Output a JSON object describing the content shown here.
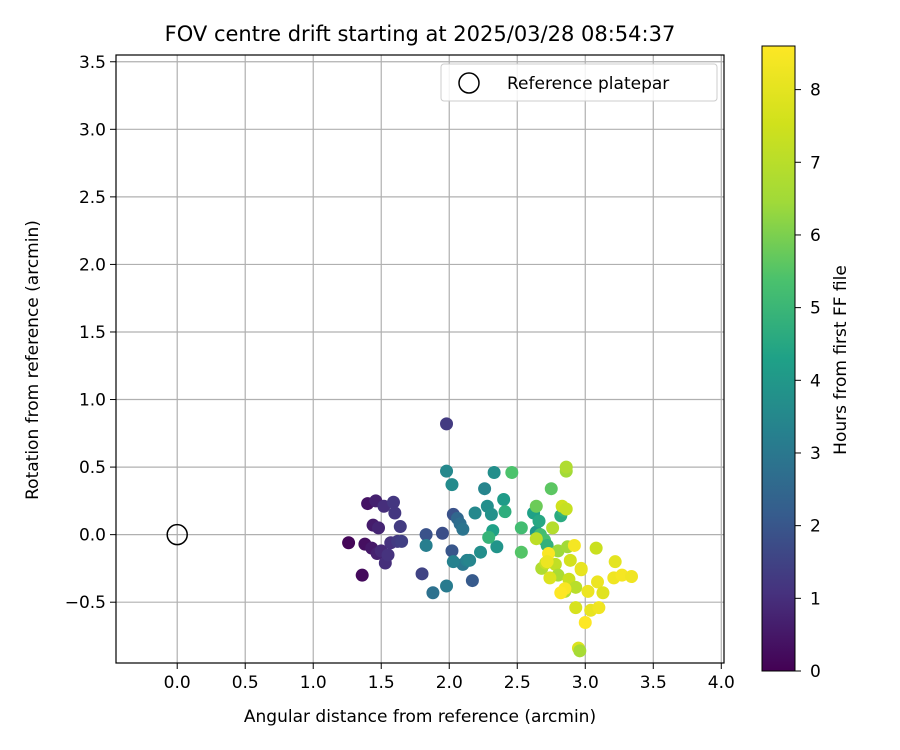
{
  "chart_data": {
    "type": "scatter",
    "title": "FOV centre drift starting at 2025/03/28 08:54:37",
    "xlabel": "Angular distance from reference (arcmin)",
    "ylabel": "Rotation from reference (arcmin)",
    "xlim": [
      -0.45,
      4.02
    ],
    "ylim": [
      -0.95,
      3.55
    ],
    "xticks": [
      "0.0",
      "0.5",
      "1.0",
      "1.5",
      "2.0",
      "2.5",
      "3.0",
      "3.5",
      "4.0"
    ],
    "yticks": [
      "−0.5",
      "0.0",
      "0.5",
      "1.0",
      "1.5",
      "2.0",
      "2.5",
      "3.0",
      "3.5"
    ],
    "grid": true,
    "legend": {
      "placement": "top-right",
      "entries": [
        "Reference platepar"
      ]
    },
    "reference_point": {
      "x": 0.0,
      "y": 0.0
    },
    "colorbar": {
      "label": "Hours from first FF file",
      "range": [
        0,
        8.6
      ],
      "ticks": [
        "0",
        "1",
        "2",
        "3",
        "4",
        "5",
        "6",
        "7",
        "8"
      ],
      "colormap": "viridis"
    },
    "points": [
      {
        "x": 1.26,
        "y": -0.06,
        "h": 0.1
      },
      {
        "x": 1.36,
        "y": -0.3,
        "h": 0.2
      },
      {
        "x": 1.38,
        "y": -0.07,
        "h": 0.3
      },
      {
        "x": 1.4,
        "y": 0.23,
        "h": 0.4
      },
      {
        "x": 1.43,
        "y": -0.1,
        "h": 0.5
      },
      {
        "x": 1.44,
        "y": 0.07,
        "h": 0.6
      },
      {
        "x": 1.46,
        "y": 0.25,
        "h": 0.7
      },
      {
        "x": 1.47,
        "y": -0.14,
        "h": 0.7
      },
      {
        "x": 1.48,
        "y": 0.05,
        "h": 0.8
      },
      {
        "x": 1.5,
        "y": -0.12,
        "h": 0.9
      },
      {
        "x": 1.52,
        "y": 0.21,
        "h": 1.0
      },
      {
        "x": 1.53,
        "y": -0.21,
        "h": 1.0
      },
      {
        "x": 1.55,
        "y": -0.15,
        "h": 1.1
      },
      {
        "x": 1.57,
        "y": -0.06,
        "h": 1.1
      },
      {
        "x": 1.59,
        "y": 0.24,
        "h": 1.2
      },
      {
        "x": 1.6,
        "y": 0.16,
        "h": 1.2
      },
      {
        "x": 1.62,
        "y": -0.05,
        "h": 1.3
      },
      {
        "x": 1.64,
        "y": 0.06,
        "h": 1.3
      },
      {
        "x": 1.65,
        "y": -0.05,
        "h": 1.4
      },
      {
        "x": 1.98,
        "y": 0.82,
        "h": 1.3
      },
      {
        "x": 1.8,
        "y": -0.29,
        "h": 1.5
      },
      {
        "x": 1.83,
        "y": 0.0,
        "h": 1.9
      },
      {
        "x": 1.95,
        "y": 0.01,
        "h": 1.8
      },
      {
        "x": 2.03,
        "y": 0.15,
        "h": 1.9
      },
      {
        "x": 2.02,
        "y": -0.12,
        "h": 2.0
      },
      {
        "x": 2.17,
        "y": -0.34,
        "h": 2.1
      },
      {
        "x": 1.88,
        "y": -0.43,
        "h": 2.8
      },
      {
        "x": 1.98,
        "y": -0.38,
        "h": 3.1
      },
      {
        "x": 2.06,
        "y": 0.12,
        "h": 2.5
      },
      {
        "x": 2.08,
        "y": 0.08,
        "h": 2.7
      },
      {
        "x": 2.1,
        "y": 0.04,
        "h": 2.9
      },
      {
        "x": 2.1,
        "y": -0.22,
        "h": 3.0
      },
      {
        "x": 1.83,
        "y": -0.08,
        "h": 3.2
      },
      {
        "x": 2.03,
        "y": -0.2,
        "h": 3.3
      },
      {
        "x": 2.13,
        "y": -0.19,
        "h": 3.3
      },
      {
        "x": 2.15,
        "y": -0.19,
        "h": 3.4
      },
      {
        "x": 1.98,
        "y": 0.47,
        "h": 3.5
      },
      {
        "x": 2.02,
        "y": 0.37,
        "h": 3.6
      },
      {
        "x": 2.19,
        "y": 0.16,
        "h": 3.5
      },
      {
        "x": 2.23,
        "y": -0.13,
        "h": 3.7
      },
      {
        "x": 2.26,
        "y": 0.34,
        "h": 3.4
      },
      {
        "x": 2.28,
        "y": 0.21,
        "h": 3.7
      },
      {
        "x": 2.31,
        "y": 0.15,
        "h": 3.8
      },
      {
        "x": 2.33,
        "y": 0.46,
        "h": 3.7
      },
      {
        "x": 2.35,
        "y": -0.09,
        "h": 3.9
      },
      {
        "x": 2.32,
        "y": 0.03,
        "h": 4.3
      },
      {
        "x": 2.4,
        "y": 0.26,
        "h": 4.1
      },
      {
        "x": 2.41,
        "y": 0.17,
        "h": 4.7
      },
      {
        "x": 2.29,
        "y": -0.02,
        "h": 4.9
      },
      {
        "x": 2.46,
        "y": 0.46,
        "h": 5.4
      },
      {
        "x": 2.53,
        "y": 0.05,
        "h": 5.2
      },
      {
        "x": 2.53,
        "y": -0.13,
        "h": 5.5
      },
      {
        "x": 2.62,
        "y": 0.16,
        "h": 4.3
      },
      {
        "x": 2.64,
        "y": 0.02,
        "h": 4.0
      },
      {
        "x": 2.66,
        "y": 0.1,
        "h": 4.5
      },
      {
        "x": 2.67,
        "y": 0.0,
        "h": 5.2
      },
      {
        "x": 2.7,
        "y": -0.04,
        "h": 5.3
      },
      {
        "x": 2.72,
        "y": -0.08,
        "h": 4.8
      },
      {
        "x": 2.75,
        "y": 0.34,
        "h": 5.6
      },
      {
        "x": 2.64,
        "y": 0.21,
        "h": 5.8
      },
      {
        "x": 2.82,
        "y": 0.14,
        "h": 4.6
      },
      {
        "x": 2.84,
        "y": 0.18,
        "h": 4.9
      },
      {
        "x": 2.86,
        "y": 0.47,
        "h": 6.5
      },
      {
        "x": 2.86,
        "y": 0.5,
        "h": 6.8
      },
      {
        "x": 2.68,
        "y": -0.25,
        "h": 6.8
      },
      {
        "x": 2.76,
        "y": 0.05,
        "h": 6.9
      },
      {
        "x": 2.8,
        "y": -0.12,
        "h": 6.4
      },
      {
        "x": 2.64,
        "y": -0.03,
        "h": 7.1
      },
      {
        "x": 2.71,
        "y": -0.21,
        "h": 7.3
      },
      {
        "x": 2.78,
        "y": -0.22,
        "h": 7.2
      },
      {
        "x": 2.83,
        "y": 0.21,
        "h": 7.5
      },
      {
        "x": 2.86,
        "y": 0.19,
        "h": 7.3
      },
      {
        "x": 2.87,
        "y": -0.09,
        "h": 6.5
      },
      {
        "x": 2.8,
        "y": -0.3,
        "h": 6.7
      },
      {
        "x": 2.85,
        "y": -0.42,
        "h": 6.9
      },
      {
        "x": 2.88,
        "y": -0.33,
        "h": 7.4
      },
      {
        "x": 2.89,
        "y": -0.19,
        "h": 7.6
      },
      {
        "x": 2.93,
        "y": -0.39,
        "h": 7.0
      },
      {
        "x": 2.93,
        "y": -0.54,
        "h": 7.7
      },
      {
        "x": 2.95,
        "y": -0.84,
        "h": 7.8
      },
      {
        "x": 2.96,
        "y": -0.86,
        "h": 6.6
      },
      {
        "x": 2.74,
        "y": -0.32,
        "h": 7.8
      },
      {
        "x": 2.97,
        "y": -0.26,
        "h": 8.0
      },
      {
        "x": 3.02,
        "y": -0.42,
        "h": 8.2
      },
      {
        "x": 3.04,
        "y": -0.56,
        "h": 8.1
      },
      {
        "x": 3.08,
        "y": -0.1,
        "h": 7.4
      },
      {
        "x": 3.09,
        "y": -0.35,
        "h": 8.2
      },
      {
        "x": 3.1,
        "y": -0.54,
        "h": 8.3
      },
      {
        "x": 3.13,
        "y": -0.43,
        "h": 7.9
      },
      {
        "x": 3.21,
        "y": -0.32,
        "h": 8.3
      },
      {
        "x": 3.22,
        "y": -0.2,
        "h": 8.0
      },
      {
        "x": 3.27,
        "y": -0.3,
        "h": 8.4
      },
      {
        "x": 3.34,
        "y": -0.31,
        "h": 8.3
      },
      {
        "x": 2.97,
        "y": -0.25,
        "h": 8.1
      },
      {
        "x": 3.0,
        "y": -0.65,
        "h": 8.6
      },
      {
        "x": 2.85,
        "y": -0.4,
        "h": 8.5
      },
      {
        "x": 2.92,
        "y": -0.08,
        "h": 8.4
      },
      {
        "x": 2.73,
        "y": -0.14,
        "h": 8.5
      },
      {
        "x": 2.82,
        "y": -0.43,
        "h": 8.6
      },
      {
        "x": 2.72,
        "y": -0.2,
        "h": 8.2
      }
    ]
  }
}
